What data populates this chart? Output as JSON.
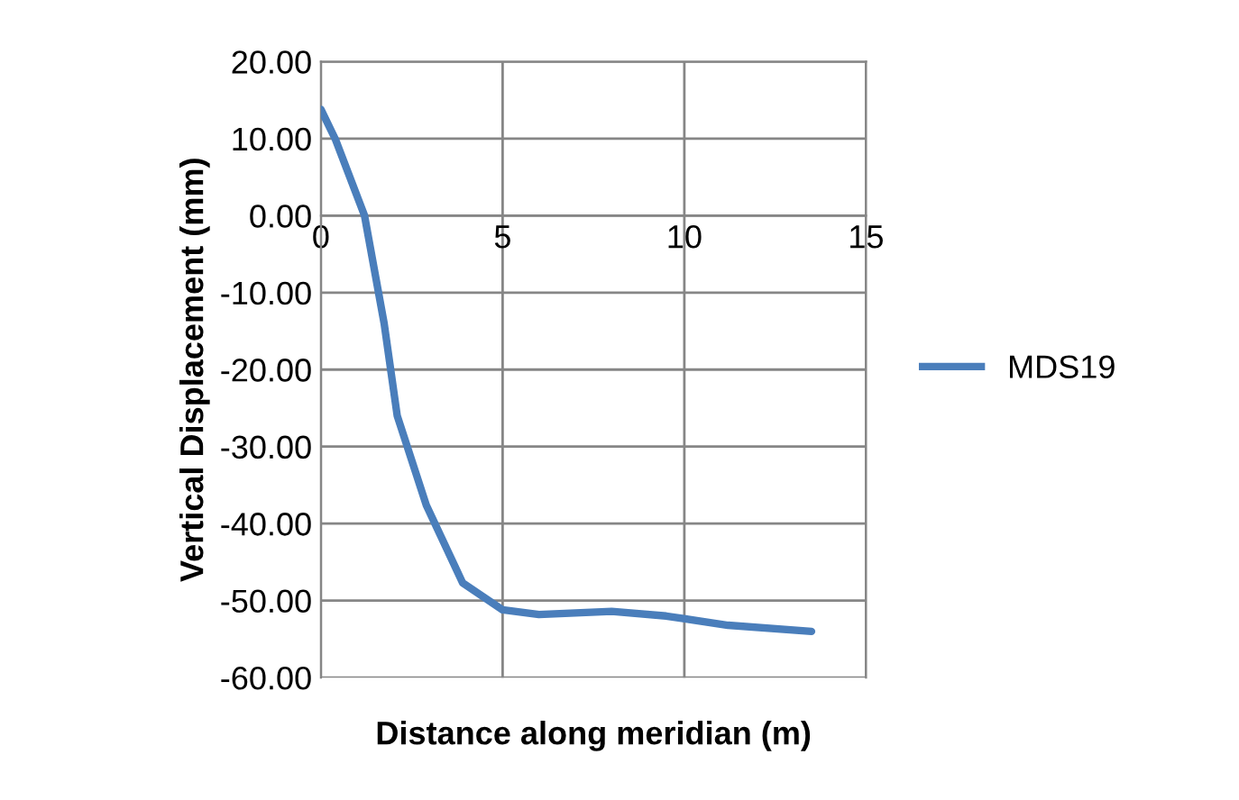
{
  "chart_data": {
    "type": "line",
    "xlabel": "Distance along meridian (m)",
    "ylabel": "Vertical Displacement (mm)",
    "series": [
      {
        "name": "MDS19",
        "color": "#4a7ebb",
        "x": [
          0,
          0.4,
          1.2,
          1.74,
          2.1,
          2.9,
          3.9,
          5.0,
          6.0,
          8.0,
          9.5,
          11.2,
          13.5
        ],
        "values": [
          13.8,
          9.9,
          0,
          -14,
          -26,
          -37.6,
          -47.7,
          -51.2,
          -51.8,
          -51.4,
          -52,
          -53.2,
          -54
        ]
      }
    ],
    "xlim": [
      0,
      15
    ],
    "xticks": [
      0,
      5,
      10,
      15
    ],
    "ylim": [
      -60,
      20
    ],
    "yticks": [
      {
        "value": -60,
        "label": "-60.00"
      },
      {
        "value": -50,
        "label": "-50.00"
      },
      {
        "value": -40,
        "label": "-40.00"
      },
      {
        "value": -30,
        "label": "-30.00"
      },
      {
        "value": -20,
        "label": "-20.00"
      },
      {
        "value": -10,
        "label": "-10.00"
      },
      {
        "value": 0,
        "label": "0.00"
      },
      {
        "value": 10,
        "label": "10.00"
      },
      {
        "value": 20,
        "label": "20.00"
      }
    ],
    "grid": true,
    "legend": "right",
    "marker": "none",
    "line_style": "solid"
  }
}
